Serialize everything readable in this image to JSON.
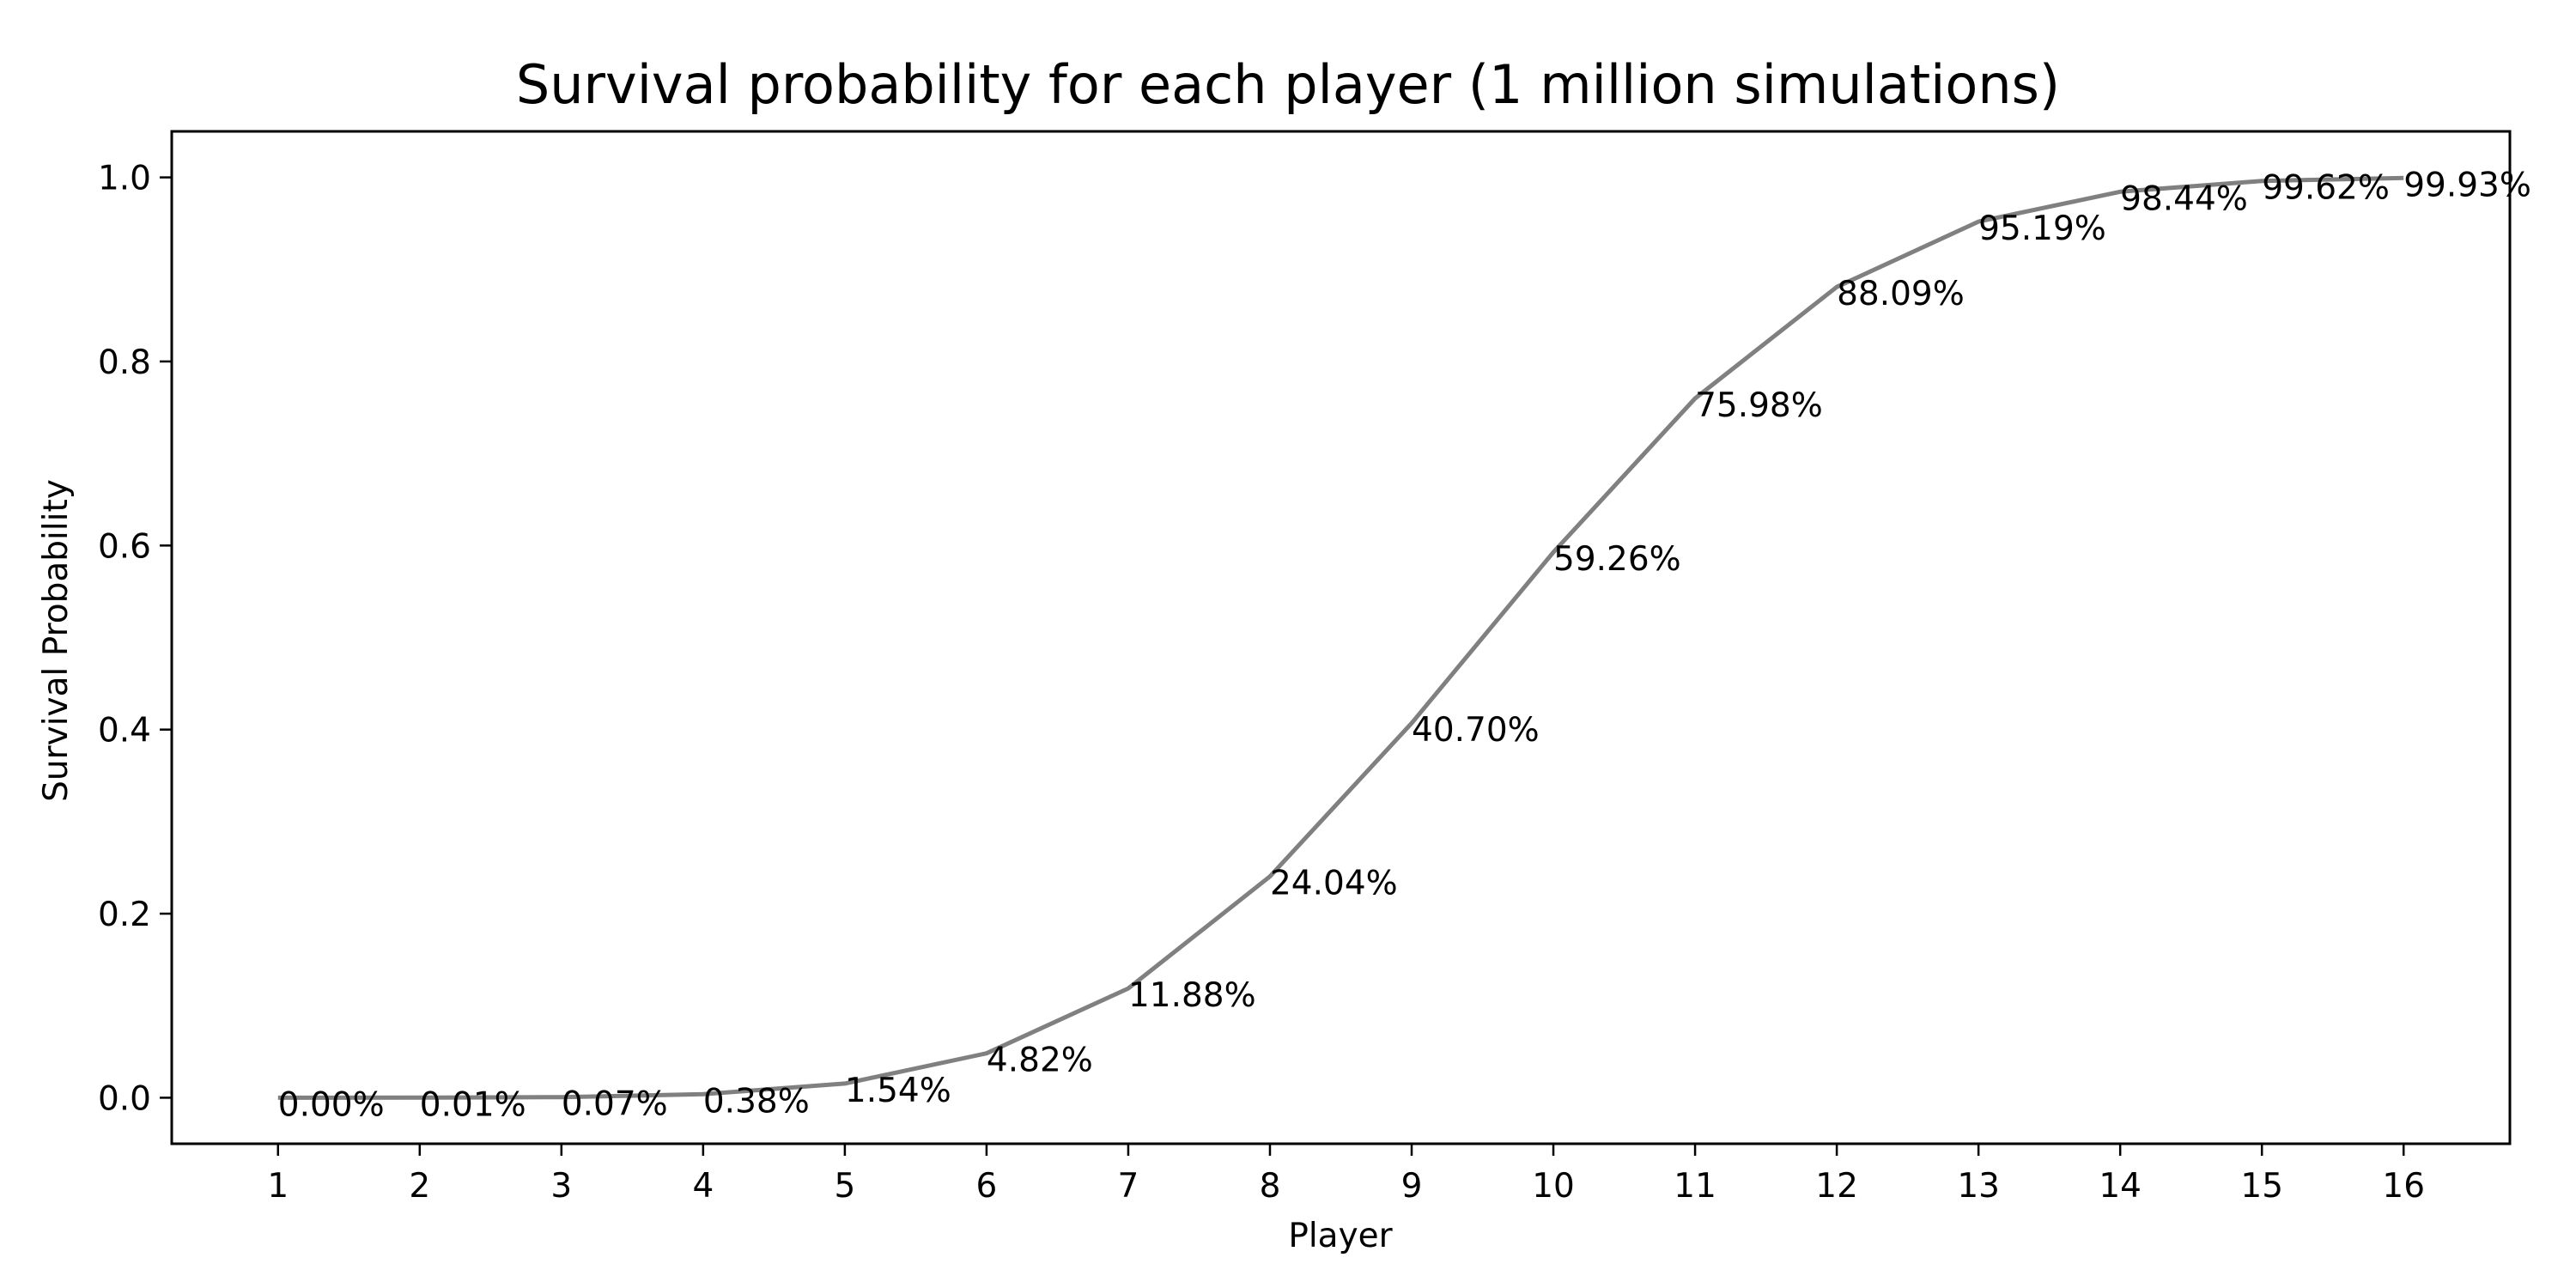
{
  "chart_data": {
    "type": "line",
    "title": "Survival probability for each player (1 million simulations)",
    "xlabel": "Player",
    "ylabel": "Survival Probability",
    "x": [
      1,
      2,
      3,
      4,
      5,
      6,
      7,
      8,
      9,
      10,
      11,
      12,
      13,
      14,
      15,
      16
    ],
    "y": [
      0.0,
      0.0001,
      0.0007,
      0.0038,
      0.0154,
      0.0482,
      0.1188,
      0.2404,
      0.407,
      0.5926,
      0.7598,
      0.8809,
      0.9519,
      0.9844,
      0.9962,
      0.9993
    ],
    "data_labels": [
      "0.00%",
      "0.01%",
      "0.07%",
      "0.38%",
      "1.54%",
      "4.82%",
      "11.88%",
      "24.04%",
      "40.70%",
      "59.26%",
      "75.98%",
      "88.09%",
      "95.19%",
      "98.44%",
      "99.62%",
      "99.93%"
    ],
    "x_ticks": [
      "1",
      "2",
      "3",
      "4",
      "5",
      "6",
      "7",
      "8",
      "9",
      "10",
      "11",
      "12",
      "13",
      "14",
      "15",
      "16"
    ],
    "y_ticks": [
      "0.0",
      "0.2",
      "0.4",
      "0.6",
      "0.8",
      "1.0"
    ],
    "y_tick_values": [
      0.0,
      0.2,
      0.4,
      0.6,
      0.8,
      1.0
    ],
    "xlim": [
      0.25,
      16.75
    ],
    "ylim": [
      -0.05,
      1.05
    ],
    "grid": false,
    "line_color": "#808080"
  }
}
